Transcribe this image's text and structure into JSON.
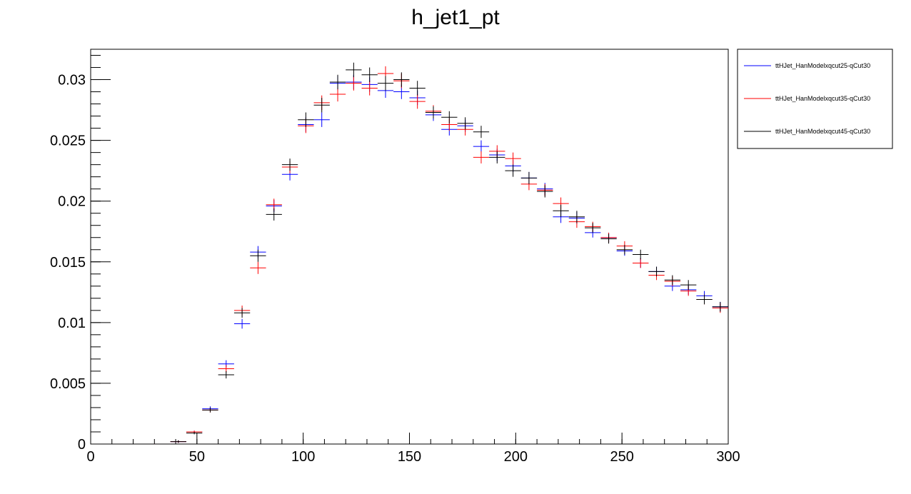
{
  "chart_data": {
    "type": "scatter",
    "title": "h_jet1_pt",
    "xlabel": "",
    "ylabel": "",
    "xlim": [
      0,
      300
    ],
    "ylim": [
      0,
      0.0325
    ],
    "bin_width": 7.5,
    "x_ticks": [
      0,
      50,
      100,
      150,
      200,
      250,
      300
    ],
    "x_tick_labels": [
      "0",
      "50",
      "100",
      "150",
      "200",
      "250",
      "300"
    ],
    "y_ticks": [
      0,
      0.005,
      0.01,
      0.015,
      0.02,
      0.025,
      0.03
    ],
    "y_tick_labels": [
      "0",
      "0.005",
      "0.01",
      "0.015",
      "0.02",
      "0.025",
      "0.03"
    ],
    "grid": false,
    "legend_position": "outside-right",
    "x": [
      33.75,
      41.25,
      48.75,
      56.25,
      63.75,
      71.25,
      78.75,
      86.25,
      93.75,
      101.25,
      108.75,
      116.25,
      123.75,
      131.25,
      138.75,
      146.25,
      153.75,
      161.25,
      168.75,
      176.25,
      183.75,
      191.25,
      198.75,
      206.25,
      213.75,
      221.25,
      228.75,
      236.25,
      243.75,
      251.25,
      258.75,
      266.25,
      273.75,
      281.25,
      288.75,
      296.25
    ],
    "series": [
      {
        "name": "ttHJet_HanModelxqcut25-qCut30",
        "color": "#0000ff",
        "values": [
          0.0,
          0.0002,
          0.001,
          0.0029,
          0.0066,
          0.0099,
          0.0158,
          0.0196,
          0.0222,
          0.0263,
          0.0267,
          0.0297,
          0.0298,
          0.0296,
          0.0291,
          0.029,
          0.0285,
          0.0271,
          0.0259,
          0.0262,
          0.0245,
          0.0238,
          0.0229,
          0.0219,
          0.021,
          0.0187,
          0.0186,
          0.0174,
          0.017,
          0.0159,
          0.0149,
          0.0142,
          0.013,
          0.0127,
          0.0122,
          0.0113
        ],
        "errors": [
          0.0,
          0.0001,
          0.0001,
          0.0002,
          0.0003,
          0.0004,
          0.0005,
          0.0005,
          0.0005,
          0.0006,
          0.0006,
          0.0006,
          0.0006,
          0.0006,
          0.0006,
          0.0006,
          0.0006,
          0.0005,
          0.0005,
          0.0005,
          0.0005,
          0.0005,
          0.0005,
          0.0005,
          0.0005,
          0.0005,
          0.0005,
          0.0004,
          0.0004,
          0.0004,
          0.0004,
          0.0004,
          0.0004,
          0.0004,
          0.0004,
          0.0004
        ]
      },
      {
        "name": "ttHJet_HanModelxqcut35-qCut30",
        "color": "#ff0000",
        "values": [
          0.0,
          0.0002,
          0.001,
          0.0028,
          0.0062,
          0.011,
          0.0145,
          0.0197,
          0.0228,
          0.0262,
          0.0281,
          0.0288,
          0.0297,
          0.0293,
          0.0305,
          0.0299,
          0.0282,
          0.0274,
          0.0263,
          0.0259,
          0.0236,
          0.0241,
          0.0235,
          0.0214,
          0.0209,
          0.0198,
          0.0183,
          0.0179,
          0.017,
          0.0163,
          0.0149,
          0.0139,
          0.0134,
          0.0126,
          0.0119,
          0.0112
        ],
        "errors": [
          0.0,
          0.0001,
          0.0001,
          0.0002,
          0.0003,
          0.0004,
          0.0005,
          0.0005,
          0.0005,
          0.0006,
          0.0006,
          0.0006,
          0.0006,
          0.0006,
          0.0006,
          0.0006,
          0.0006,
          0.0005,
          0.0005,
          0.0005,
          0.0005,
          0.0005,
          0.0005,
          0.0005,
          0.0005,
          0.0005,
          0.0005,
          0.0004,
          0.0004,
          0.0004,
          0.0004,
          0.0004,
          0.0004,
          0.0004,
          0.0004,
          0.0004
        ]
      },
      {
        "name": "ttHJet_HanModelxqcut45-qCut30",
        "color": "#000000",
        "values": [
          0.0,
          0.0002,
          0.0009,
          0.0028,
          0.0057,
          0.0108,
          0.0155,
          0.0189,
          0.023,
          0.0267,
          0.0279,
          0.0298,
          0.0308,
          0.0304,
          0.0297,
          0.03,
          0.0293,
          0.0273,
          0.0269,
          0.0264,
          0.0257,
          0.0236,
          0.0225,
          0.0219,
          0.0208,
          0.0192,
          0.0187,
          0.0178,
          0.0169,
          0.016,
          0.0156,
          0.0142,
          0.0135,
          0.0131,
          0.0119,
          0.0113
        ],
        "errors": [
          0.0,
          0.0001,
          0.0001,
          0.0002,
          0.0003,
          0.0004,
          0.0005,
          0.0005,
          0.0005,
          0.0006,
          0.0006,
          0.0006,
          0.0006,
          0.0006,
          0.0006,
          0.0006,
          0.0006,
          0.0005,
          0.0005,
          0.0005,
          0.0005,
          0.0005,
          0.0005,
          0.0005,
          0.0005,
          0.0005,
          0.0005,
          0.0004,
          0.0004,
          0.0004,
          0.0004,
          0.0004,
          0.0004,
          0.0004,
          0.0004,
          0.0004
        ]
      }
    ]
  }
}
